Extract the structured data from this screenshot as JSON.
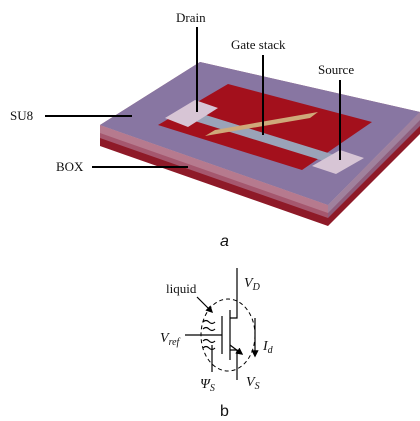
{
  "figure_a": {
    "labels": {
      "drain": "Drain",
      "gate_stack": "Gate stack",
      "source": "Source",
      "su8": "SU8",
      "box": "BOX"
    },
    "caption": "a"
  },
  "figure_b": {
    "liquid": "liquid",
    "v_d": {
      "symbol": "V",
      "sub": "D"
    },
    "v_ref": {
      "symbol": "V",
      "sub": "ref"
    },
    "i_d": {
      "symbol": "I",
      "sub": "d"
    },
    "psi_s": {
      "symbol": "Ψ",
      "sub": "S"
    },
    "v_s": {
      "symbol": "V",
      "sub": "S"
    },
    "caption": "b"
  }
}
